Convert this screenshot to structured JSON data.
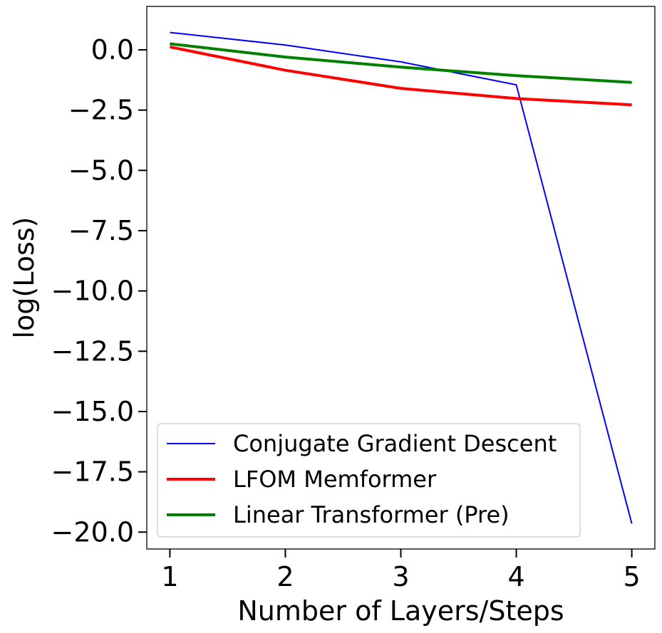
{
  "chart_data": {
    "type": "line",
    "xlabel": "Number of Layers/Steps",
    "ylabel": "log(Loss)",
    "x": [
      1,
      2,
      3,
      4,
      5
    ],
    "xticks": [
      "1",
      "2",
      "3",
      "4",
      "5"
    ],
    "yticks": [
      0.0,
      -2.5,
      -5.0,
      -7.5,
      -10.0,
      -12.5,
      -15.0,
      -17.5,
      -20.0
    ],
    "ytick_labels": [
      "0.0",
      "−2.5",
      "−5.0",
      "−7.5",
      "−10.0",
      "−12.5",
      "−15.0",
      "−17.5",
      "−20.0"
    ],
    "xlim": [
      0.8,
      5.2
    ],
    "ylim": [
      -20.7,
      1.8
    ],
    "grid": false,
    "legend_position": "lower-left",
    "series": [
      {
        "name": "Conjugate Gradient Descent",
        "color": "#0000ff",
        "style": "thin",
        "values": [
          0.72,
          0.2,
          -0.5,
          -1.45,
          -19.65
        ]
      },
      {
        "name": "LFOM Memformer",
        "color": "#ff0000",
        "style": "thick",
        "values": [
          0.12,
          -0.85,
          -1.6,
          -2.02,
          -2.28
        ]
      },
      {
        "name": "Linear Transformer (Pre)",
        "color": "#008000",
        "style": "thick",
        "values": [
          0.25,
          -0.3,
          -0.72,
          -1.07,
          -1.35
        ]
      }
    ]
  }
}
